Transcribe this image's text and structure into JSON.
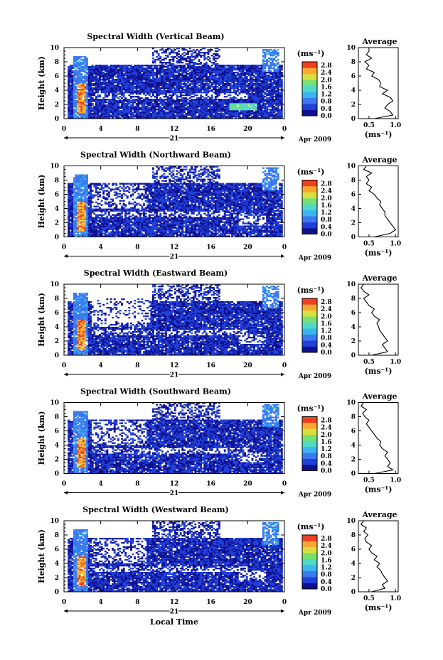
{
  "figure": {
    "xlabel": "Local Time",
    "date_label": "Apr 2009",
    "day_label": "21"
  },
  "colorbar": {
    "unit": "(ms⁻¹)",
    "ticks": [
      "0.0",
      "0.4",
      "0.8",
      "1.2",
      "1.6",
      "2.0",
      "2.4",
      "2.8"
    ],
    "colors": [
      "#101090",
      "#2040d8",
      "#3c78f0",
      "#3cb4f0",
      "#50d8c8",
      "#78e070",
      "#d8e040",
      "#f8a830",
      "#f04020"
    ]
  },
  "chart_data": [
    {
      "type": "heatmap",
      "title": "Spectral Width (Vertical Beam)",
      "ylabel": "Height (km)",
      "xlim": [
        0,
        24
      ],
      "ylim": [
        0,
        10
      ],
      "xticks": [
        "0",
        "4",
        "8",
        "12",
        "16",
        "20",
        "0"
      ],
      "yticks": [
        "0",
        "2",
        "4",
        "6",
        "8",
        "10"
      ],
      "clim": [
        0.0,
        3.0
      ],
      "average": {
        "title": "Average",
        "xlabel": "(ms⁻¹)",
        "xticks": [
          "0.5",
          "1.0"
        ],
        "xlim": [
          0.3,
          1.05
        ],
        "height": [
          0,
          0.5,
          1,
          1.5,
          2,
          2.5,
          3,
          3.5,
          4,
          4.5,
          5,
          5.5,
          6,
          6.5,
          7,
          7.5,
          8,
          8.5,
          9,
          9.5,
          10
        ],
        "values": [
          0.6,
          0.95,
          0.9,
          0.8,
          0.85,
          0.95,
          0.9,
          0.75,
          0.85,
          0.7,
          0.72,
          0.68,
          0.55,
          0.6,
          0.45,
          0.5,
          0.42,
          0.55,
          0.45,
          0.5,
          0.5
        ]
      }
    },
    {
      "type": "heatmap",
      "title": "Spectral Width (Northward Beam)",
      "ylabel": "Height (km)",
      "xlim": [
        0,
        24
      ],
      "ylim": [
        0,
        10
      ],
      "xticks": [
        "0",
        "4",
        "8",
        "12",
        "16",
        "20",
        "0"
      ],
      "yticks": [
        "0",
        "2",
        "4",
        "6",
        "8",
        "10"
      ],
      "clim": [
        0.0,
        3.0
      ],
      "average": {
        "title": "Average",
        "xlabel": "(ms⁻¹)",
        "xticks": [
          "0.5",
          "1.0"
        ],
        "xlim": [
          0.3,
          1.05
        ],
        "height": [
          0,
          0.5,
          1,
          1.5,
          2,
          2.5,
          3,
          3.5,
          4,
          4.5,
          5,
          5.5,
          6,
          6.5,
          7,
          7.5,
          8,
          8.5,
          9,
          9.5,
          10
        ],
        "values": [
          0.6,
          0.9,
          1.0,
          0.95,
          0.9,
          0.85,
          0.8,
          0.8,
          0.75,
          0.7,
          0.72,
          0.65,
          0.6,
          0.5,
          0.55,
          0.45,
          0.5,
          0.45,
          0.55,
          0.4,
          0.45
        ]
      }
    },
    {
      "type": "heatmap",
      "title": "Spectral Width (Eastward Beam)",
      "ylabel": "Height (km)",
      "xlim": [
        0,
        24
      ],
      "ylim": [
        0,
        10
      ],
      "xticks": [
        "0",
        "4",
        "8",
        "12",
        "16",
        "20",
        "0"
      ],
      "yticks": [
        "0",
        "2",
        "4",
        "6",
        "8",
        "10"
      ],
      "clim": [
        0.0,
        3.0
      ],
      "average": {
        "title": "Average",
        "xlabel": "(ms⁻¹)",
        "xticks": [
          "0.5",
          "1.0"
        ],
        "xlim": [
          0.3,
          1.05
        ],
        "height": [
          0,
          0.5,
          1,
          1.5,
          2,
          2.5,
          3,
          3.5,
          4,
          4.5,
          5,
          5.5,
          6,
          6.5,
          7,
          7.5,
          8,
          8.5,
          9,
          9.5,
          10
        ],
        "values": [
          0.55,
          0.85,
          0.8,
          0.75,
          0.85,
          0.8,
          0.75,
          0.7,
          0.68,
          0.65,
          0.7,
          0.6,
          0.55,
          0.6,
          0.5,
          0.45,
          0.4,
          0.5,
          0.4,
          0.35,
          0.4
        ]
      }
    },
    {
      "type": "heatmap",
      "title": "Spectral Width (Southward Beam)",
      "ylabel": "Height (km)",
      "xlim": [
        0,
        24
      ],
      "ylim": [
        0,
        10
      ],
      "xticks": [
        "0",
        "4",
        "8",
        "12",
        "16",
        "20",
        "0"
      ],
      "yticks": [
        "0",
        "2",
        "4",
        "6",
        "8",
        "10"
      ],
      "clim": [
        0.0,
        3.0
      ],
      "average": {
        "title": "Average",
        "xlabel": "(ms⁻¹)",
        "xticks": [
          "0.5",
          "1.0"
        ],
        "xlim": [
          0.3,
          1.05
        ],
        "height": [
          0,
          0.5,
          1,
          1.5,
          2,
          2.5,
          3,
          3.5,
          4,
          4.5,
          5,
          5.5,
          6,
          6.5,
          7,
          7.5,
          8,
          8.5,
          9,
          9.5,
          10
        ],
        "values": [
          0.6,
          0.95,
          0.85,
          0.9,
          0.85,
          0.8,
          0.85,
          0.75,
          0.7,
          0.72,
          0.65,
          0.6,
          0.55,
          0.5,
          0.45,
          0.5,
          0.42,
          0.38,
          0.45,
          0.35,
          0.4
        ]
      }
    },
    {
      "type": "heatmap",
      "title": "Spectral Width (Westward Beam)",
      "ylabel": "Height (km)",
      "xlim": [
        0,
        24
      ],
      "ylim": [
        0,
        10
      ],
      "xticks": [
        "0",
        "4",
        "8",
        "12",
        "16",
        "20",
        "0"
      ],
      "yticks": [
        "0",
        "2",
        "4",
        "6",
        "8",
        "10"
      ],
      "clim": [
        0.0,
        3.0
      ],
      "average": {
        "title": "Average",
        "xlabel": "(ms⁻¹)",
        "xticks": [
          "0.5",
          "1.0"
        ],
        "xlim": [
          0.3,
          1.05
        ],
        "height": [
          0,
          0.5,
          1,
          1.5,
          2,
          2.5,
          3,
          3.5,
          4,
          4.5,
          5,
          5.5,
          6,
          6.5,
          7,
          7.5,
          8,
          8.5,
          9,
          9.5,
          10
        ],
        "values": [
          0.55,
          0.8,
          0.75,
          0.85,
          0.8,
          0.75,
          0.72,
          0.65,
          0.7,
          0.6,
          0.65,
          0.55,
          0.5,
          0.55,
          0.45,
          0.42,
          0.48,
          0.4,
          0.45,
          0.35,
          0.4
        ]
      }
    }
  ]
}
